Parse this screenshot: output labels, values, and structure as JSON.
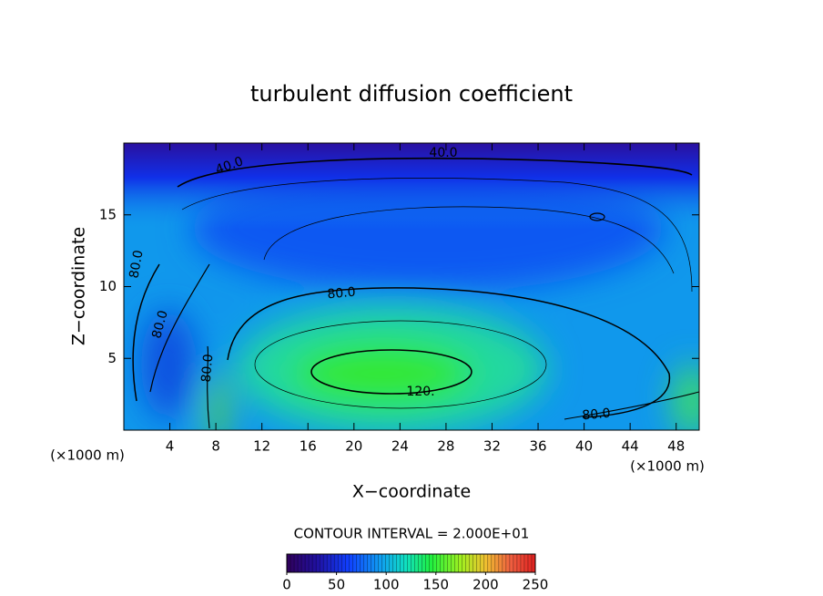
{
  "chart_data": {
    "type": "contour",
    "title": "turbulent diffusion coefficient",
    "xlabel": "X−coordinate",
    "ylabel": "Z−coordinate",
    "axis_unit": "(×1000 m)",
    "xlim": [
      0,
      50
    ],
    "xticks": [
      4,
      8,
      12,
      16,
      20,
      24,
      28,
      32,
      36,
      40,
      44,
      48
    ],
    "ylim": [
      0,
      20
    ],
    "yticks": [
      5,
      10,
      15
    ],
    "contour_labels": [
      {
        "value": 40,
        "label": "40.0"
      },
      {
        "value": 40,
        "label": "40.0"
      },
      {
        "value": 80,
        "label": "80.0"
      },
      {
        "value": 80,
        "label": "80.0"
      },
      {
        "value": 80,
        "label": "80.0"
      },
      {
        "value": 80,
        "label": "80.0"
      },
      {
        "value": 120,
        "label": "120."
      },
      {
        "value": 80,
        "label": "80.0"
      }
    ],
    "contour_interval": "CONTOUR INTERVAL = 2.000E+01",
    "colorbar": {
      "lim": [
        0,
        250
      ],
      "ticks": [
        0,
        50,
        100,
        150,
        200,
        250
      ]
    }
  }
}
